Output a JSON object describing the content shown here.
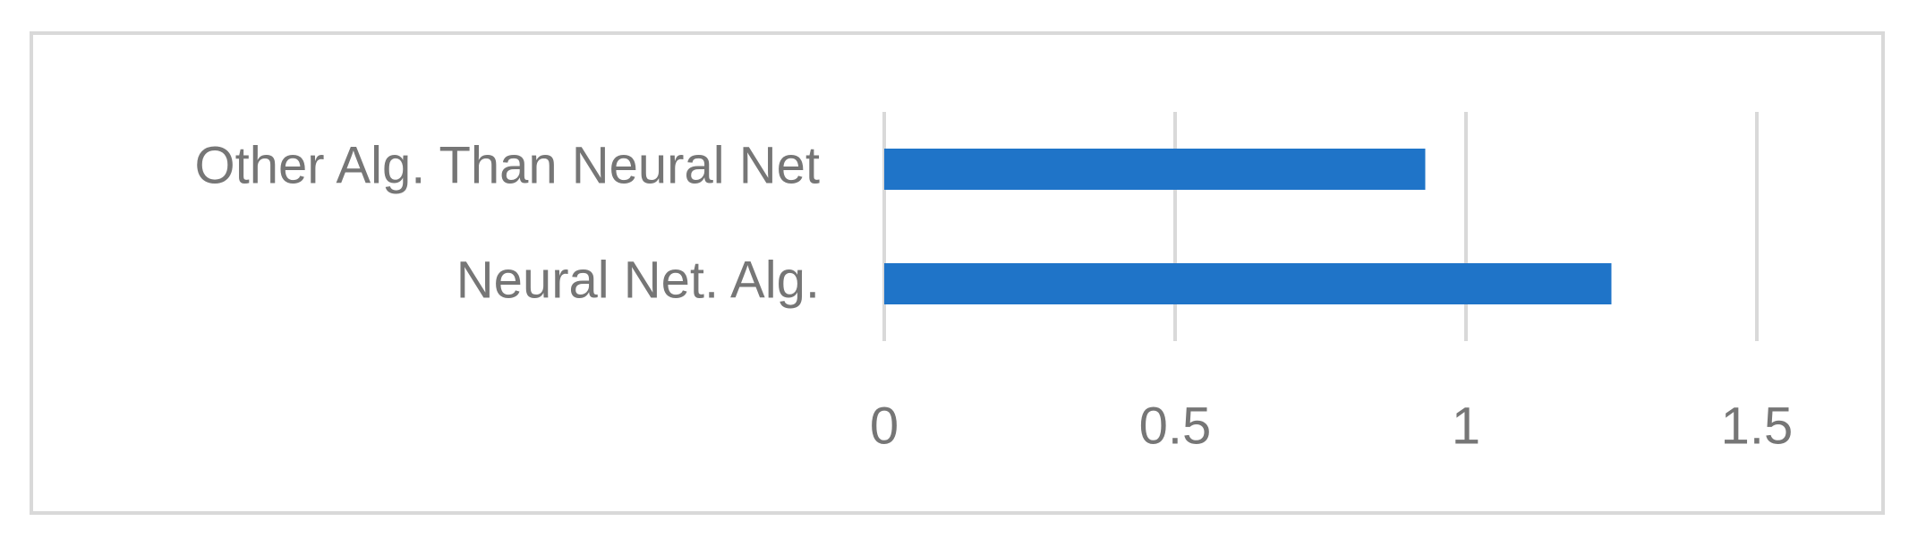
{
  "chart_data": {
    "type": "hbar",
    "categories": [
      "Other Alg. Than Neural Net",
      "Neural Net. Alg."
    ],
    "values": [
      0.93,
      1.25
    ],
    "color": "#1f74c8",
    "xlim": [
      0,
      1.5
    ],
    "xticks": [
      0,
      0.5,
      1,
      1.5
    ],
    "grid": true
  }
}
